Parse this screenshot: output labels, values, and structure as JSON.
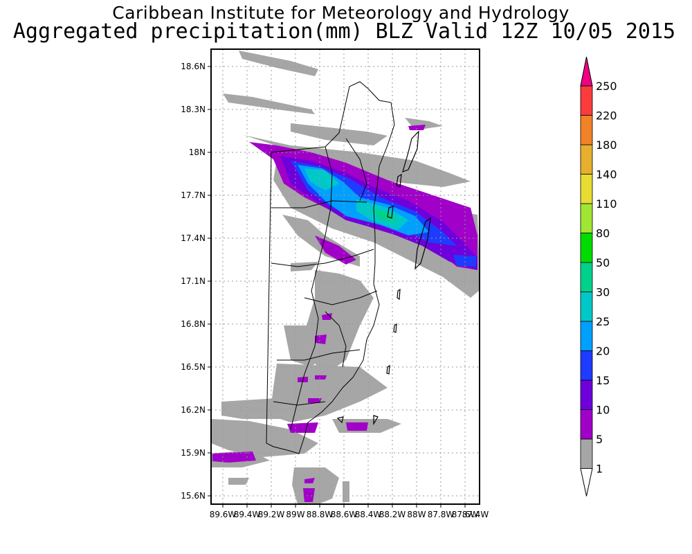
{
  "title": {
    "line1": "Caribbean Institute for Meteorology and Hydrology",
    "line2": "Aggregated precipitation(mm) BLZ Valid 12Z 10/05 2015"
  },
  "axes": {
    "lat_labels": [
      "18.6N",
      "18.3N",
      "18N",
      "17.7N",
      "17.4N",
      "17.1N",
      "16.8N",
      "16.5N",
      "16.2N",
      "15.9N",
      "15.6N"
    ],
    "lon_labels": [
      "89.6W",
      "89.4W",
      "89.2W",
      "89W",
      "88.8W",
      "88.6W",
      "88.4W",
      "88.2W",
      "88W",
      "87.8W",
      "87.6W",
      "87.4W"
    ]
  },
  "colorbar": {
    "levels": [
      "1",
      "5",
      "10",
      "15",
      "20",
      "25",
      "30",
      "50",
      "80",
      "110",
      "140",
      "180",
      "220",
      "250"
    ],
    "colors": [
      "#ffffff",
      "#a6a6a6",
      "#a000c8",
      "#6e00dc",
      "#1e3cff",
      "#00a0ff",
      "#00c8c8",
      "#00d28c",
      "#00dc00",
      "#a0e632",
      "#e6dc32",
      "#e6af2d",
      "#f08228",
      "#fa3c3c",
      "#f00082"
    ]
  }
}
